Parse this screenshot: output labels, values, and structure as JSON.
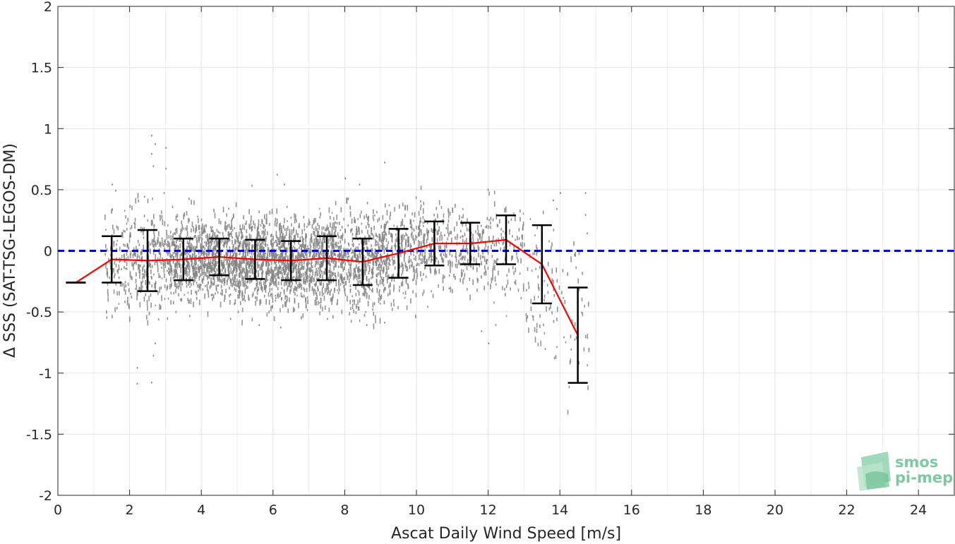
{
  "chart_data": {
    "type": "scatter",
    "xlabel": "Ascat Daily Wind Speed [m/s]",
    "ylabel": "Δ SSS (SAT-TSG-LEGOS-DM)",
    "xlim": [
      0,
      25
    ],
    "ylim": [
      -2,
      2
    ],
    "x_ticks": [
      0,
      2,
      4,
      6,
      8,
      10,
      12,
      14,
      16,
      18,
      20,
      22,
      24
    ],
    "y_ticks": [
      2,
      1.5,
      1,
      0.5,
      0,
      -0.5,
      -1,
      -1.5,
      -2
    ],
    "grid": true,
    "reference_line": {
      "y": 0,
      "color": "#0000cc",
      "style": "dashed"
    },
    "scatter_color": "#808080",
    "mean_line_color": "#ff0000",
    "errorbar_color": "#000000",
    "binned_stats": [
      {
        "x": 0.5,
        "mean": -0.26,
        "std": 0.0
      },
      {
        "x": 1.5,
        "mean": -0.07,
        "std": 0.19
      },
      {
        "x": 2.5,
        "mean": -0.08,
        "std": 0.25
      },
      {
        "x": 3.5,
        "mean": -0.07,
        "std": 0.17
      },
      {
        "x": 4.5,
        "mean": -0.05,
        "std": 0.15
      },
      {
        "x": 5.5,
        "mean": -0.07,
        "std": 0.16
      },
      {
        "x": 6.5,
        "mean": -0.08,
        "std": 0.16
      },
      {
        "x": 7.5,
        "mean": -0.06,
        "std": 0.18
      },
      {
        "x": 8.5,
        "mean": -0.09,
        "std": 0.19
      },
      {
        "x": 9.5,
        "mean": -0.02,
        "std": 0.2
      },
      {
        "x": 10.5,
        "mean": 0.06,
        "std": 0.18
      },
      {
        "x": 11.5,
        "mean": 0.06,
        "std": 0.17
      },
      {
        "x": 12.5,
        "mean": 0.09,
        "std": 0.2
      },
      {
        "x": 13.5,
        "mean": -0.11,
        "std": 0.32
      },
      {
        "x": 14.5,
        "mean": -0.69,
        "std": 0.39
      }
    ],
    "scatter_clusters": [
      {
        "x": [
          1.3,
          1.9
        ],
        "y_center": -0.08,
        "y_spread": 0.2,
        "count": 90
      },
      {
        "x": [
          1.9,
          3.0
        ],
        "y_center": -0.07,
        "y_spread": 0.22,
        "count": 240
      },
      {
        "x": [
          3.0,
          4.0
        ],
        "y_center": -0.06,
        "y_spread": 0.18,
        "count": 380
      },
      {
        "x": [
          4.0,
          5.0
        ],
        "y_center": -0.05,
        "y_spread": 0.16,
        "count": 460
      },
      {
        "x": [
          5.0,
          6.0
        ],
        "y_center": -0.07,
        "y_spread": 0.17,
        "count": 480
      },
      {
        "x": [
          6.0,
          7.0
        ],
        "y_center": -0.07,
        "y_spread": 0.17,
        "count": 470
      },
      {
        "x": [
          7.0,
          8.0
        ],
        "y_center": -0.06,
        "y_spread": 0.18,
        "count": 430
      },
      {
        "x": [
          8.0,
          9.0
        ],
        "y_center": -0.08,
        "y_spread": 0.19,
        "count": 360
      },
      {
        "x": [
          9.0,
          10.0
        ],
        "y_center": -0.02,
        "y_spread": 0.19,
        "count": 280
      },
      {
        "x": [
          10.0,
          11.0
        ],
        "y_center": 0.05,
        "y_spread": 0.17,
        "count": 190
      },
      {
        "x": [
          11.0,
          12.0
        ],
        "y_center": 0.05,
        "y_spread": 0.16,
        "count": 150
      },
      {
        "x": [
          12.0,
          13.0
        ],
        "y_center": 0.05,
        "y_spread": 0.2,
        "count": 110
      },
      {
        "x": [
          13.0,
          13.9
        ],
        "y_center": -0.3,
        "y_spread": 0.28,
        "count": 70
      },
      {
        "x": [
          13.9,
          14.8
        ],
        "y_center": -0.55,
        "y_spread": 0.3,
        "count": 40
      }
    ],
    "scatter_outliers": [
      [
        2.6,
        0.95
      ],
      [
        2.7,
        0.88
      ],
      [
        2.6,
        0.8
      ],
      [
        2.65,
        0.7
      ],
      [
        3.0,
        0.85
      ],
      [
        3.0,
        0.68
      ],
      [
        2.2,
        -1.08
      ],
      [
        2.2,
        -0.95
      ],
      [
        2.6,
        -1.07
      ],
      [
        2.65,
        -0.85
      ],
      [
        2.7,
        -0.75
      ],
      [
        1.5,
        0.55
      ],
      [
        1.6,
        0.5
      ],
      [
        2.4,
        0.45
      ],
      [
        6.1,
        0.63
      ],
      [
        6.3,
        0.55
      ],
      [
        9.1,
        0.73
      ],
      [
        8.0,
        0.6
      ],
      [
        5.4,
        0.54
      ],
      [
        8.4,
        0.55
      ],
      [
        14.0,
        0.48
      ],
      [
        14.7,
        0.48
      ],
      [
        14.7,
        0.3
      ],
      [
        14.75,
        0.15
      ],
      [
        13.8,
        0.42
      ],
      [
        13.9,
        0.35
      ],
      [
        6.2,
        -0.62
      ],
      [
        8.6,
        -0.6
      ],
      [
        9.1,
        -0.58
      ],
      [
        12.0,
        -0.75
      ],
      [
        11.8,
        -0.65
      ],
      [
        12.2,
        -0.6
      ],
      [
        13.9,
        -0.78
      ],
      [
        14.1,
        -0.7
      ],
      [
        14.3,
        -0.8
      ],
      [
        14.4,
        -0.72
      ],
      [
        5.6,
        -0.6
      ],
      [
        4.8,
        -0.55
      ],
      [
        7.5,
        -0.55
      ],
      [
        10.3,
        -0.45
      ],
      [
        10.9,
        -0.3
      ]
    ]
  },
  "logo": {
    "line1": "smos",
    "line2": "pi-mep"
  }
}
